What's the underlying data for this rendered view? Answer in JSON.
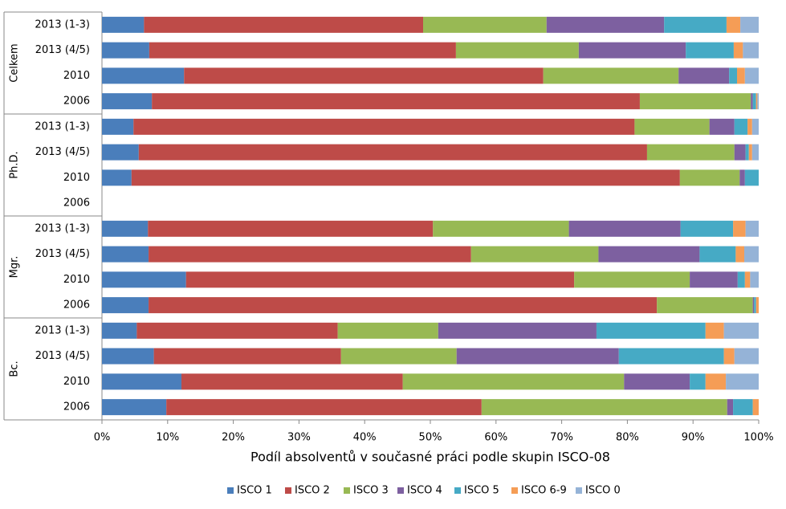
{
  "chart_data": {
    "type": "stacked-bar-horizontal",
    "x_label": "Podíl absolventů v současné práci podle skupin ISCO-08",
    "groups": [
      "Celkem",
      "Ph.D.",
      "Mgr.",
      "Bc."
    ],
    "categories": [
      "2013 (1-3)",
      "2013 (4/5)",
      "2010",
      "2006",
      "2013 (1-3)",
      "2013 (4/5)",
      "2010",
      "2006",
      "2013 (1-3)",
      "2013 (4/5)",
      "2010",
      "2006",
      "2013 (1-3)",
      "2013 (4/5)",
      "2010",
      "2006"
    ],
    "series": [
      {
        "name": "ISCO 1",
        "color": "#4a7ebb",
        "values": [
          6.4,
          7.2,
          12.5,
          7.6,
          4.8,
          5.6,
          4.5,
          null,
          7.0,
          7.1,
          12.8,
          7.1,
          5.3,
          7.9,
          12.1,
          9.8
        ]
      },
      {
        "name": "ISCO 2",
        "color": "#be4b48",
        "values": [
          42.5,
          46.7,
          54.7,
          74.3,
          76.3,
          77.4,
          83.5,
          null,
          43.4,
          49.1,
          59.1,
          77.4,
          30.6,
          28.5,
          33.7,
          48.0
        ]
      },
      {
        "name": "ISCO 3",
        "color": "#98b954",
        "values": [
          18.8,
          18.7,
          20.6,
          16.9,
          11.4,
          13.3,
          9.1,
          null,
          20.7,
          19.4,
          17.6,
          14.6,
          15.3,
          17.6,
          33.7,
          37.4
        ]
      },
      {
        "name": "ISCO 4",
        "color": "#7d60a0",
        "values": [
          17.9,
          16.3,
          7.7,
          0.3,
          3.8,
          1.7,
          0.8,
          null,
          17.0,
          15.4,
          7.3,
          0.2,
          24.1,
          24.7,
          10.0,
          0.9
        ]
      },
      {
        "name": "ISCO 5",
        "color": "#46aac5",
        "values": [
          9.5,
          7.3,
          1.2,
          0.5,
          2.0,
          0.5,
          2.1,
          null,
          8.0,
          5.5,
          1.1,
          0.3,
          16.6,
          16.0,
          2.4,
          3.0
        ]
      },
      {
        "name": "ISCO 6-9",
        "color": "#f59d56",
        "values": [
          2.1,
          1.4,
          1.2,
          0.2,
          0.7,
          0.5,
          0,
          null,
          1.9,
          1.3,
          0.8,
          0.4,
          2.8,
          1.6,
          3.1,
          0.9
        ]
      },
      {
        "name": "ISCO 0",
        "color": "#95b3d7",
        "values": [
          2.8,
          2.4,
          2.1,
          0.2,
          1.0,
          1.0,
          0,
          null,
          2.0,
          2.2,
          1.3,
          0,
          5.3,
          3.7,
          5.0,
          0
        ]
      }
    ],
    "xlim": [
      0,
      100
    ],
    "xticks": [
      {
        "value": 0,
        "label": "0%"
      },
      {
        "value": 10,
        "label": "10%"
      },
      {
        "value": 20,
        "label": "20%"
      },
      {
        "value": 30,
        "label": "30%"
      },
      {
        "value": 40,
        "label": "40%"
      },
      {
        "value": 50,
        "label": "50%"
      },
      {
        "value": 60,
        "label": "60%"
      },
      {
        "value": 70,
        "label": "70%"
      },
      {
        "value": 80,
        "label": "80%"
      },
      {
        "value": 90,
        "label": "90%"
      },
      {
        "value": 100,
        "label": "100%"
      }
    ],
    "legend": "bottom"
  }
}
